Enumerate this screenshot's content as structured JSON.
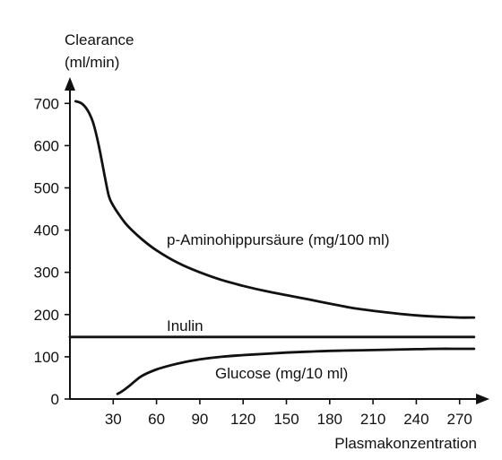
{
  "chart_data": {
    "type": "line",
    "ylabel_line1": "Clearance",
    "ylabel_line2": "(ml/min)",
    "xlabel": "Plasmakonzentration",
    "xlim": [
      0,
      285
    ],
    "ylim": [
      0,
      760
    ],
    "x_ticks": [
      30,
      60,
      90,
      120,
      150,
      180,
      210,
      240,
      270
    ],
    "y_ticks": [
      0,
      100,
      200,
      300,
      400,
      500,
      600,
      700
    ],
    "series": [
      {
        "name": "p-Aminohippursäure (mg/100 ml)",
        "points": [
          [
            4,
            705
          ],
          [
            8,
            700
          ],
          [
            12,
            685
          ],
          [
            16,
            655
          ],
          [
            20,
            600
          ],
          [
            24,
            530
          ],
          [
            27,
            480
          ],
          [
            30,
            458
          ],
          [
            35,
            432
          ],
          [
            40,
            410
          ],
          [
            50,
            378
          ],
          [
            60,
            352
          ],
          [
            75,
            322
          ],
          [
            90,
            300
          ],
          [
            105,
            282
          ],
          [
            120,
            268
          ],
          [
            135,
            256
          ],
          [
            150,
            246
          ],
          [
            165,
            236
          ],
          [
            180,
            226
          ],
          [
            195,
            216
          ],
          [
            210,
            209
          ],
          [
            225,
            203
          ],
          [
            240,
            198
          ],
          [
            255,
            195
          ],
          [
            270,
            193
          ],
          [
            280,
            193
          ]
        ]
      },
      {
        "name": "Inulin",
        "points": [
          [
            0,
            147
          ],
          [
            280,
            147
          ]
        ]
      },
      {
        "name": "Glucose (mg/10 ml)",
        "points": [
          [
            33,
            12
          ],
          [
            36,
            18
          ],
          [
            40,
            28
          ],
          [
            45,
            42
          ],
          [
            50,
            55
          ],
          [
            60,
            70
          ],
          [
            70,
            80
          ],
          [
            80,
            88
          ],
          [
            90,
            94
          ],
          [
            105,
            100
          ],
          [
            120,
            104
          ],
          [
            135,
            107
          ],
          [
            150,
            110
          ],
          [
            165,
            112
          ],
          [
            180,
            114
          ],
          [
            195,
            115
          ],
          [
            210,
            116
          ],
          [
            225,
            117
          ],
          [
            240,
            118
          ],
          [
            255,
            119
          ],
          [
            270,
            119
          ],
          [
            280,
            119
          ]
        ]
      }
    ]
  }
}
